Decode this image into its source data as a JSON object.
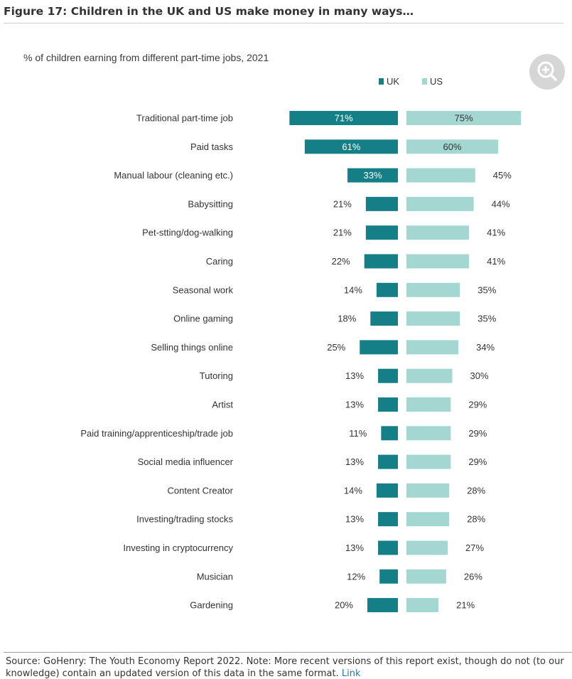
{
  "figure_title": "Figure 17: Children in the UK and US make money in many ways…",
  "zoom_icon": "zoom-in-icon",
  "source_text": "Source: GoHenry: The Youth Economy Report 2022. Note: More recent versions of this report exist, though do not (to our knowledge) contain an updated version of this data in the same format.",
  "source_link": "Link",
  "colors": {
    "uk": "#157f87",
    "us": "#a4d7d1",
    "text": "#333333"
  },
  "chart_data": {
    "type": "bar",
    "orientation": "horizontal-butterfly",
    "title": "% of children earning from different part-time jobs, 2021",
    "value_suffix": "%",
    "legend_position": "top-right",
    "grid": false,
    "categories": [
      "Traditional part-time job",
      "Paid tasks",
      "Manual labour (cleaning etc.)",
      "Babysitting",
      "Pet-stting/dog-walking",
      "Caring",
      "Seasonal work",
      "Online gaming",
      "Selling things online",
      "Tutoring",
      "Artist",
      "Paid training/apprenticeship/trade job",
      "Social media influencer",
      "Content Creator",
      "Investing/trading stocks",
      "Investing in cryptocurrency",
      "Musician",
      "Gardening"
    ],
    "series": [
      {
        "name": "UK",
        "values": [
          71,
          61,
          33,
          21,
          21,
          22,
          14,
          18,
          25,
          13,
          13,
          11,
          13,
          14,
          13,
          13,
          12,
          20
        ]
      },
      {
        "name": "US",
        "values": [
          75,
          60,
          45,
          44,
          41,
          41,
          35,
          35,
          34,
          30,
          29,
          29,
          29,
          28,
          28,
          27,
          26,
          21
        ]
      }
    ]
  }
}
